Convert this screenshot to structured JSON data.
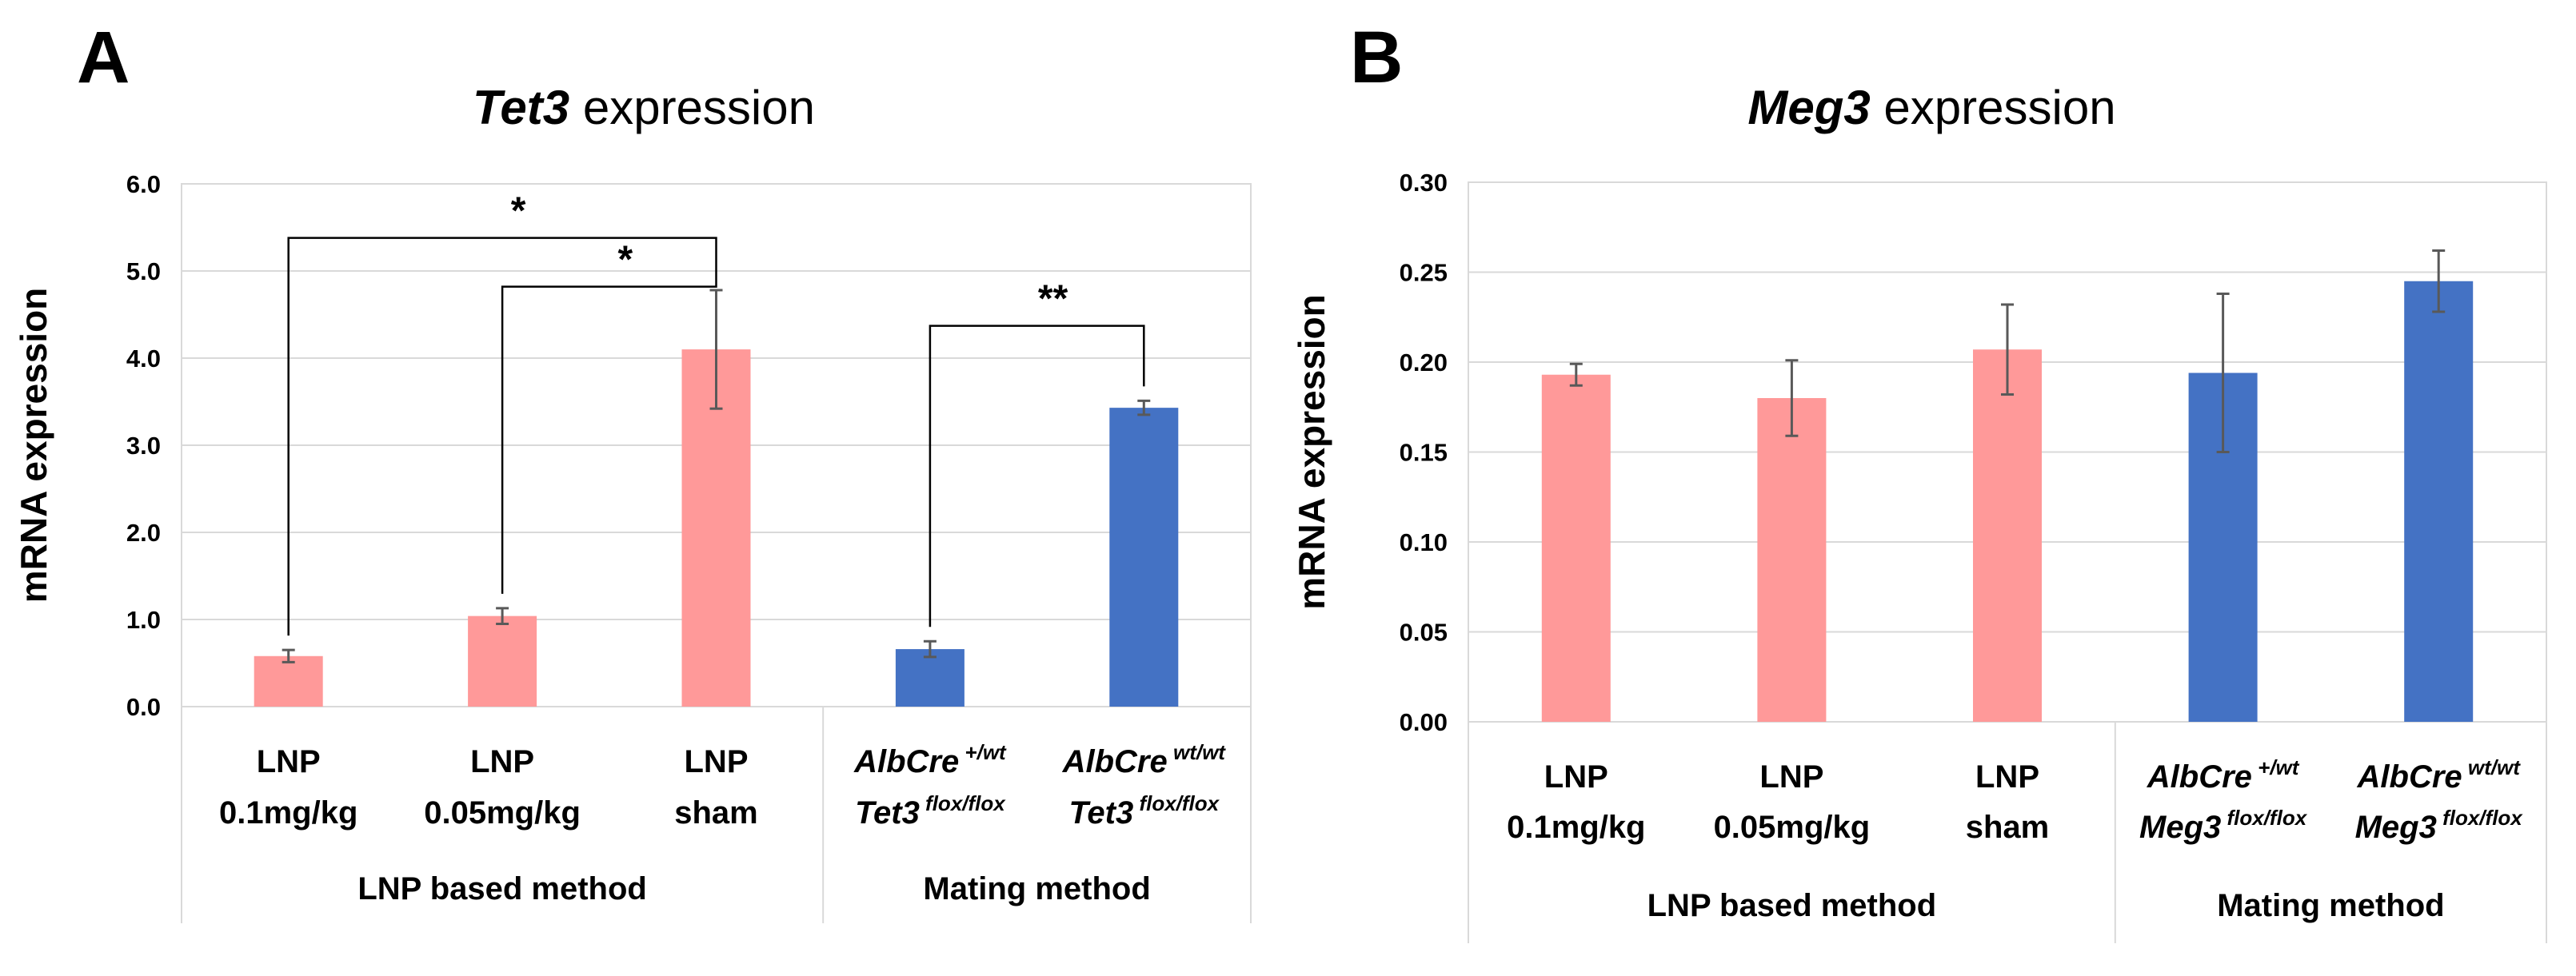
{
  "chart_data": [
    {
      "panel": "A",
      "type": "bar",
      "title_italic": "Tet3",
      "title_rest": " expression",
      "ylabel": "mRNA expression",
      "ylim": [
        0,
        6
      ],
      "yticks": [
        "0.0",
        "1.0",
        "2.0",
        "3.0",
        "4.0",
        "5.0",
        "6.0"
      ],
      "grid": true,
      "categories": [
        {
          "line1": "LNP",
          "line2": "0.1mg/kg",
          "italic": false,
          "value": 0.58,
          "error": 0.07,
          "color": "#ff9999"
        },
        {
          "line1": "LNP",
          "line2": "0.05mg/kg",
          "italic": false,
          "value": 1.04,
          "error": 0.09,
          "color": "#ff9999"
        },
        {
          "line1": "LNP",
          "line2": "sham",
          "italic": false,
          "value": 4.1,
          "error": 0.68,
          "color": "#ff9999"
        },
        {
          "line1_base": "AlbCre",
          "line1_sup": "+/wt",
          "line2_base": "Tet3",
          "line2_sup": "flox/flox",
          "italic": true,
          "value": 0.66,
          "error": 0.09,
          "color": "#4472c4"
        },
        {
          "line1_base": "AlbCre",
          "line1_sup": "wt/wt",
          "line2_base": "Tet3",
          "line2_sup": "flox/flox",
          "italic": true,
          "value": 3.43,
          "error": 0.08,
          "color": "#4472c4"
        }
      ],
      "groups": [
        {
          "label": "LNP based method",
          "categories": [
            0,
            1,
            2
          ]
        },
        {
          "label": "Mating method",
          "categories": [
            3,
            4
          ]
        }
      ],
      "significance": [
        {
          "from": 0,
          "to": 2,
          "label": "*",
          "y": 5.38
        },
        {
          "from": 1,
          "to": 2,
          "label": "*",
          "y": 4.82
        },
        {
          "from": 3,
          "to": 4,
          "label": "**",
          "y": 4.37
        }
      ]
    },
    {
      "panel": "B",
      "type": "bar",
      "title_italic": "Meg3",
      "title_rest": " expression",
      "ylabel": "mRNA expression",
      "ylim": [
        0,
        0.3
      ],
      "yticks": [
        "0.00",
        "0.05",
        "0.10",
        "0.15",
        "0.20",
        "0.25",
        "0.30"
      ],
      "grid": true,
      "categories": [
        {
          "line1": "LNP",
          "line2": "0.1mg/kg",
          "italic": false,
          "value": 0.193,
          "error": 0.006,
          "color": "#ff9999"
        },
        {
          "line1": "LNP",
          "line2": "0.05mg/kg",
          "italic": false,
          "value": 0.18,
          "error": 0.021,
          "color": "#ff9999"
        },
        {
          "line1": "LNP",
          "line2": "sham",
          "italic": false,
          "value": 0.207,
          "error": 0.025,
          "color": "#ff9999"
        },
        {
          "line1_base": "AlbCre",
          "line1_sup": "+/wt",
          "line2_base": "Meg3",
          "line2_sup": "flox/flox",
          "italic": true,
          "value": 0.194,
          "error": 0.044,
          "color": "#4472c4"
        },
        {
          "line1_base": "AlbCre",
          "line1_sup": "wt/wt",
          "line2_base": "Meg3",
          "line2_sup": "flox/flox",
          "italic": true,
          "value": 0.245,
          "error": 0.017,
          "color": "#4472c4"
        }
      ],
      "groups": [
        {
          "label": "LNP based method",
          "categories": [
            0,
            1,
            2
          ]
        },
        {
          "label": "Mating method",
          "categories": [
            3,
            4
          ]
        }
      ],
      "significance": []
    }
  ]
}
